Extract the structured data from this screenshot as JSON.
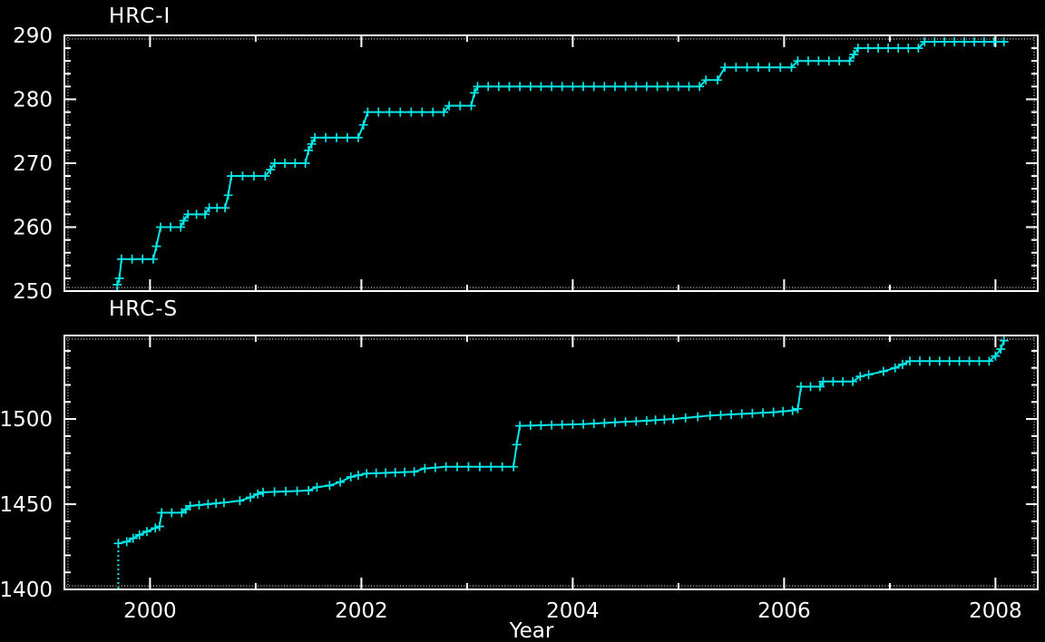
{
  "page": {
    "background_color": "#000000",
    "axis_color": "#ffffff",
    "data_color": "#00e8e8"
  },
  "x_axis": {
    "label": "Year",
    "major_ticks": [
      2000,
      2002,
      2004,
      2006,
      2008
    ],
    "minor_ticks": [
      2001,
      2003,
      2005,
      2007
    ],
    "range": [
      1999.19,
      2008.4
    ]
  },
  "chart_data": [
    {
      "type": "line",
      "title": "HRC-I",
      "marker": "plus",
      "line_color": "#00e8e8",
      "xlabel": "Year",
      "xlim": [
        1999.19,
        2008.4
      ],
      "ylim": [
        250,
        290
      ],
      "ytick_labels": [
        250,
        260,
        270,
        280,
        290
      ],
      "y_minor_step": 2,
      "grid": false,
      "legend": "none",
      "start_drop": {
        "year": 1999.69,
        "from_value": 250
      },
      "steps": [
        [
          1999.69,
          251
        ],
        [
          1999.71,
          252
        ],
        [
          1999.73,
          255
        ],
        [
          2000.03,
          255
        ],
        [
          2000.06,
          257
        ],
        [
          2000.1,
          260
        ],
        [
          2000.29,
          260
        ],
        [
          2000.32,
          261
        ],
        [
          2000.36,
          262
        ],
        [
          2000.52,
          262
        ],
        [
          2000.56,
          263
        ],
        [
          2000.71,
          263
        ],
        [
          2000.74,
          265
        ],
        [
          2000.77,
          268
        ],
        [
          2001.09,
          268
        ],
        [
          2001.14,
          269
        ],
        [
          2001.18,
          270
        ],
        [
          2001.47,
          270
        ],
        [
          2001.5,
          272
        ],
        [
          2001.53,
          273
        ],
        [
          2001.56,
          274
        ],
        [
          2001.97,
          274
        ],
        [
          2002.02,
          276
        ],
        [
          2002.06,
          278
        ],
        [
          2002.78,
          278
        ],
        [
          2002.83,
          279
        ],
        [
          2003.04,
          279
        ],
        [
          2003.07,
          281
        ],
        [
          2003.1,
          282
        ],
        [
          2005.2,
          282
        ],
        [
          2005.26,
          283
        ],
        [
          2005.37,
          283
        ],
        [
          2005.44,
          285
        ],
        [
          2006.07,
          285
        ],
        [
          2006.13,
          286
        ],
        [
          2006.62,
          286
        ],
        [
          2006.66,
          287
        ],
        [
          2006.7,
          288
        ],
        [
          2007.27,
          288
        ],
        [
          2007.33,
          289
        ],
        [
          2008.08,
          289
        ]
      ]
    },
    {
      "type": "line",
      "title": "HRC-S",
      "marker": "plus",
      "line_color": "#00e8e8",
      "xlabel": "Year",
      "xlim": [
        1999.19,
        2008.4
      ],
      "ylim": [
        1400,
        1549
      ],
      "ytick_labels": [
        1400,
        1450,
        1500
      ],
      "y_minor_step": 10,
      "grid": false,
      "legend": "none",
      "start_drop": {
        "year": 1999.7,
        "from_value": 1400
      },
      "steps": [
        [
          1999.7,
          1427
        ],
        [
          1999.78,
          1428
        ],
        [
          1999.84,
          1430
        ],
        [
          1999.9,
          1432
        ],
        [
          1999.97,
          1434
        ],
        [
          2000.05,
          1436
        ],
        [
          2000.09,
          1437
        ],
        [
          2000.11,
          1445
        ],
        [
          2000.3,
          1445
        ],
        [
          2000.34,
          1447
        ],
        [
          2000.38,
          1449
        ],
        [
          2000.55,
          1450
        ],
        [
          2000.7,
          1451
        ],
        [
          2000.85,
          1452
        ],
        [
          2000.95,
          1454
        ],
        [
          2001.02,
          1456
        ],
        [
          2001.07,
          1457
        ],
        [
          2001.5,
          1458
        ],
        [
          2001.58,
          1460
        ],
        [
          2001.7,
          1461
        ],
        [
          2001.8,
          1463
        ],
        [
          2001.9,
          1466
        ],
        [
          2001.97,
          1467
        ],
        [
          2002.05,
          1468
        ],
        [
          2002.5,
          1469
        ],
        [
          2002.6,
          1471
        ],
        [
          2002.8,
          1472
        ],
        [
          2003.44,
          1472
        ],
        [
          2003.47,
          1485
        ],
        [
          2003.5,
          1496
        ],
        [
          2004.1,
          1497
        ],
        [
          2004.4,
          1498
        ],
        [
          2004.7,
          1499
        ],
        [
          2004.95,
          1500
        ],
        [
          2005.3,
          1502
        ],
        [
          2005.6,
          1503
        ],
        [
          2005.9,
          1504
        ],
        [
          2006.08,
          1505
        ],
        [
          2006.13,
          1506
        ],
        [
          2006.16,
          1519
        ],
        [
          2006.34,
          1519
        ],
        [
          2006.37,
          1522
        ],
        [
          2006.65,
          1522
        ],
        [
          2006.72,
          1525
        ],
        [
          2006.8,
          1526
        ],
        [
          2006.94,
          1528
        ],
        [
          2007.05,
          1530
        ],
        [
          2007.12,
          1532
        ],
        [
          2007.19,
          1534
        ],
        [
          2007.94,
          1534
        ],
        [
          2008.0,
          1537
        ],
        [
          2008.05,
          1541
        ],
        [
          2008.08,
          1546
        ]
      ]
    }
  ]
}
